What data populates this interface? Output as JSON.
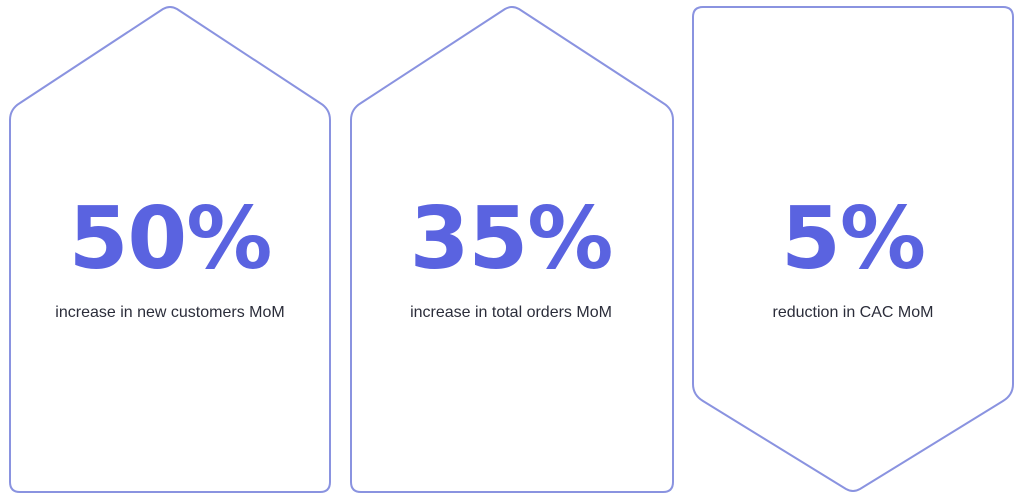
{
  "colors": {
    "accent": "#5a63e0",
    "border": "#8a93e0",
    "label_text": "#2b2d3a",
    "background": "#ffffff"
  },
  "stats": [
    {
      "value": "50%",
      "label": "increase in new customers MoM",
      "shape": "arrow-up"
    },
    {
      "value": "35%",
      "label": "increase in total orders MoM",
      "shape": "arrow-up"
    },
    {
      "value": "5%",
      "label": "reduction in CAC MoM",
      "shape": "arrow-down"
    }
  ]
}
